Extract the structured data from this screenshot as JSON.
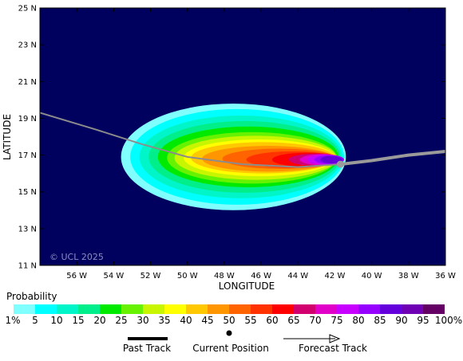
{
  "map": {
    "ylabel": "LATITUDE",
    "xlabel": "LONGITUDE",
    "watermark": "© UCL 2025",
    "lat_ticks": [
      {
        "value": 25,
        "label": "25 N"
      },
      {
        "value": 23,
        "label": "23 N"
      },
      {
        "value": 21,
        "label": "21 N"
      },
      {
        "value": 19,
        "label": "19 N"
      },
      {
        "value": 17,
        "label": "17 N"
      },
      {
        "value": 15,
        "label": "15 N"
      },
      {
        "value": 13,
        "label": "13 N"
      },
      {
        "value": 11,
        "label": "11 N"
      }
    ],
    "lon_ticks": [
      {
        "value": -56,
        "label": "56 W"
      },
      {
        "value": -54,
        "label": "54 W"
      },
      {
        "value": -52,
        "label": "52 W"
      },
      {
        "value": -50,
        "label": "50 W"
      },
      {
        "value": -48,
        "label": "48 W"
      },
      {
        "value": -46,
        "label": "46 W"
      },
      {
        "value": -44,
        "label": "44 W"
      },
      {
        "value": -42,
        "label": "42 W"
      },
      {
        "value": -40,
        "label": "40 W"
      },
      {
        "value": -38,
        "label": "38 W"
      },
      {
        "value": -36,
        "label": "36 W"
      }
    ],
    "lon_range": [
      -58,
      -36
    ],
    "lat_range": [
      11,
      25
    ],
    "background_color": "#00005e",
    "past_track": [
      [
        -58,
        19.3
      ],
      [
        -55,
        18.4
      ],
      [
        -52.5,
        17.6
      ],
      [
        -50,
        16.9
      ],
      [
        -47,
        16.5
      ],
      [
        -44,
        16.35
      ],
      [
        -41.7,
        16.5
      ]
    ],
    "current_position": [
      -41.7,
      16.5
    ],
    "forecast_track": [
      [
        -41.7,
        16.5
      ],
      [
        -40,
        16.7
      ],
      [
        -38,
        17.0
      ],
      [
        -36,
        17.2
      ]
    ],
    "probability_levels": [
      {
        "threshold": 1,
        "center": [
          -47.5,
          16.9
        ],
        "rx": 6.1,
        "ry": 2.9
      },
      {
        "threshold": 5,
        "center": [
          -47.3,
          16.9
        ],
        "rx": 5.8,
        "ry": 2.6
      },
      {
        "threshold": 10,
        "center": [
          -47.1,
          16.9
        ],
        "rx": 5.5,
        "ry": 2.25
      },
      {
        "threshold": 15,
        "center": [
          -46.9,
          16.9
        ],
        "rx": 5.2,
        "ry": 1.95
      },
      {
        "threshold": 20,
        "center": [
          -46.7,
          16.9
        ],
        "rx": 4.9,
        "ry": 1.65
      },
      {
        "threshold": 25,
        "center": [
          -46.5,
          16.85
        ],
        "rx": 4.6,
        "ry": 1.4
      },
      {
        "threshold": 30,
        "center": [
          -46.3,
          16.85
        ],
        "rx": 4.4,
        "ry": 1.2
      },
      {
        "threshold": 35,
        "center": [
          -46.1,
          16.85
        ],
        "rx": 4.1,
        "ry": 1.0
      },
      {
        "threshold": 40,
        "center": [
          -45.9,
          16.85
        ],
        "rx": 3.9,
        "ry": 0.85
      },
      {
        "threshold": 45,
        "center": [
          -45.6,
          16.8
        ],
        "rx": 3.6,
        "ry": 0.7
      },
      {
        "threshold": 50,
        "center": [
          -45.0,
          16.8
        ],
        "rx": 3.1,
        "ry": 0.55
      },
      {
        "threshold": 55,
        "center": [
          -44.3,
          16.75
        ],
        "rx": 2.5,
        "ry": 0.45
      },
      {
        "threshold": 60,
        "center": [
          -43.5,
          16.75
        ],
        "rx": 1.9,
        "ry": 0.38
      },
      {
        "threshold": 65,
        "center": [
          -43.0,
          16.75
        ],
        "rx": 1.5,
        "ry": 0.33
      },
      {
        "threshold": 70,
        "center": [
          -42.7,
          16.75
        ],
        "rx": 1.2,
        "ry": 0.3
      },
      {
        "threshold": 75,
        "center": [
          -42.5,
          16.75
        ],
        "rx": 1.0,
        "ry": 0.27
      },
      {
        "threshold": 80,
        "center": [
          -42.3,
          16.75
        ],
        "rx": 0.8,
        "ry": 0.24
      },
      {
        "threshold": 85,
        "center": [
          -42.2,
          16.75
        ],
        "rx": 0.6,
        "ry": 0.2
      }
    ]
  },
  "legend": {
    "title": "Probability",
    "labels": [
      "1%",
      "5",
      "10",
      "15",
      "20",
      "25",
      "30",
      "35",
      "40",
      "45",
      "50",
      "55",
      "60",
      "65",
      "70",
      "75",
      "80",
      "85",
      "90",
      "95",
      "100%"
    ],
    "colors": [
      "#80ffff",
      "#00ffff",
      "#00f5c8",
      "#00ef8a",
      "#00ea00",
      "#66f200",
      "#c8f500",
      "#ffff00",
      "#ffc800",
      "#ff9600",
      "#ff6400",
      "#ff3200",
      "#ff0000",
      "#d2006e",
      "#e100c8",
      "#c800ff",
      "#9600ff",
      "#6400dc",
      "#7000b4",
      "#640064"
    ]
  },
  "key": {
    "past_track_label": "Past Track",
    "current_position_label": "Current Position",
    "forecast_track_label": "Forecast Track"
  }
}
